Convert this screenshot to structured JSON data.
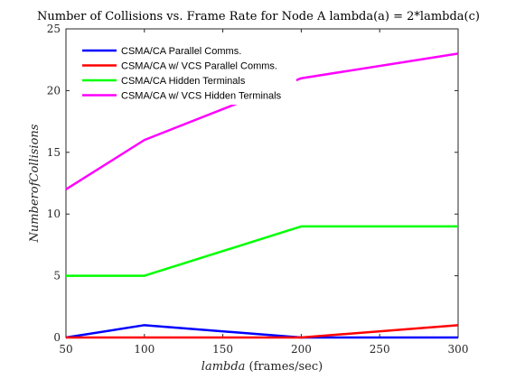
{
  "chart_data": {
    "type": "line",
    "title": "Number of Collisions vs. Frame Rate for Node A lambda(a) = 2*lambda(c)",
    "xlabel_italic": "lambda",
    "xlabel_rest": " (frames/sec)",
    "ylabel": "NumberofCollisions",
    "x": [
      50,
      100,
      200,
      300
    ],
    "xlim": [
      50,
      300
    ],
    "ylim": [
      0,
      25
    ],
    "xticks": [
      50,
      100,
      150,
      200,
      250,
      300
    ],
    "yticks": [
      0,
      5,
      10,
      15,
      20,
      25
    ],
    "grid": false,
    "legend_position": "top-left",
    "series": [
      {
        "name": "CSMA/CA Parallel Comms.",
        "color": "#0000ff",
        "values": [
          0,
          1,
          0,
          0
        ]
      },
      {
        "name": "CSMA/CA w/ VCS Parallel Comms.",
        "color": "#ff0000",
        "values": [
          0,
          0,
          0,
          1
        ]
      },
      {
        "name": "CSMA/CA Hidden Terminals",
        "color": "#00ff00",
        "values": [
          5,
          5,
          9,
          9
        ]
      },
      {
        "name": "CSMA/CA w/ VCS Hidden Terminals",
        "color": "#ff00ff",
        "values": [
          12,
          16,
          21,
          23
        ]
      }
    ]
  }
}
